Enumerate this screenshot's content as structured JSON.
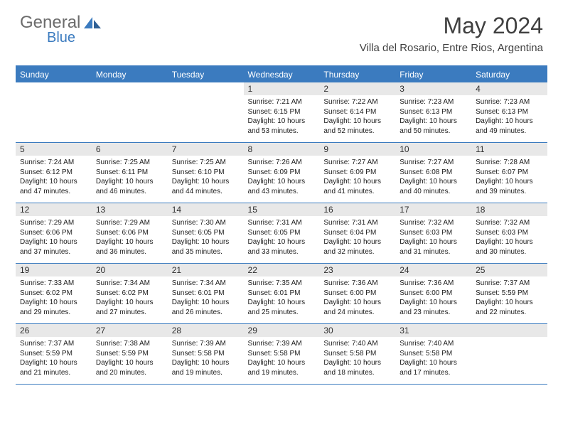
{
  "brand": {
    "part1": "General",
    "part2": "Blue"
  },
  "title": "May 2024",
  "location": "Villa del Rosario, Entre Rios, Argentina",
  "colors": {
    "primary": "#3b7bbf",
    "gray_bar": "#e8e8e8",
    "text_dark": "#303030",
    "logo_gray": "#6b6b6b"
  },
  "day_names": [
    "Sunday",
    "Monday",
    "Tuesday",
    "Wednesday",
    "Thursday",
    "Friday",
    "Saturday"
  ],
  "weeks": [
    [
      {
        "blank": true
      },
      {
        "blank": true
      },
      {
        "blank": true
      },
      {
        "n": "1",
        "sr": "7:21 AM",
        "ss": "6:15 PM",
        "dl": "10 hours and 53 minutes."
      },
      {
        "n": "2",
        "sr": "7:22 AM",
        "ss": "6:14 PM",
        "dl": "10 hours and 52 minutes."
      },
      {
        "n": "3",
        "sr": "7:23 AM",
        "ss": "6:13 PM",
        "dl": "10 hours and 50 minutes."
      },
      {
        "n": "4",
        "sr": "7:23 AM",
        "ss": "6:13 PM",
        "dl": "10 hours and 49 minutes."
      }
    ],
    [
      {
        "n": "5",
        "sr": "7:24 AM",
        "ss": "6:12 PM",
        "dl": "10 hours and 47 minutes."
      },
      {
        "n": "6",
        "sr": "7:25 AM",
        "ss": "6:11 PM",
        "dl": "10 hours and 46 minutes."
      },
      {
        "n": "7",
        "sr": "7:25 AM",
        "ss": "6:10 PM",
        "dl": "10 hours and 44 minutes."
      },
      {
        "n": "8",
        "sr": "7:26 AM",
        "ss": "6:09 PM",
        "dl": "10 hours and 43 minutes."
      },
      {
        "n": "9",
        "sr": "7:27 AM",
        "ss": "6:09 PM",
        "dl": "10 hours and 41 minutes."
      },
      {
        "n": "10",
        "sr": "7:27 AM",
        "ss": "6:08 PM",
        "dl": "10 hours and 40 minutes."
      },
      {
        "n": "11",
        "sr": "7:28 AM",
        "ss": "6:07 PM",
        "dl": "10 hours and 39 minutes."
      }
    ],
    [
      {
        "n": "12",
        "sr": "7:29 AM",
        "ss": "6:06 PM",
        "dl": "10 hours and 37 minutes."
      },
      {
        "n": "13",
        "sr": "7:29 AM",
        "ss": "6:06 PM",
        "dl": "10 hours and 36 minutes."
      },
      {
        "n": "14",
        "sr": "7:30 AM",
        "ss": "6:05 PM",
        "dl": "10 hours and 35 minutes."
      },
      {
        "n": "15",
        "sr": "7:31 AM",
        "ss": "6:05 PM",
        "dl": "10 hours and 33 minutes."
      },
      {
        "n": "16",
        "sr": "7:31 AM",
        "ss": "6:04 PM",
        "dl": "10 hours and 32 minutes."
      },
      {
        "n": "17",
        "sr": "7:32 AM",
        "ss": "6:03 PM",
        "dl": "10 hours and 31 minutes."
      },
      {
        "n": "18",
        "sr": "7:32 AM",
        "ss": "6:03 PM",
        "dl": "10 hours and 30 minutes."
      }
    ],
    [
      {
        "n": "19",
        "sr": "7:33 AM",
        "ss": "6:02 PM",
        "dl": "10 hours and 29 minutes."
      },
      {
        "n": "20",
        "sr": "7:34 AM",
        "ss": "6:02 PM",
        "dl": "10 hours and 27 minutes."
      },
      {
        "n": "21",
        "sr": "7:34 AM",
        "ss": "6:01 PM",
        "dl": "10 hours and 26 minutes."
      },
      {
        "n": "22",
        "sr": "7:35 AM",
        "ss": "6:01 PM",
        "dl": "10 hours and 25 minutes."
      },
      {
        "n": "23",
        "sr": "7:36 AM",
        "ss": "6:00 PM",
        "dl": "10 hours and 24 minutes."
      },
      {
        "n": "24",
        "sr": "7:36 AM",
        "ss": "6:00 PM",
        "dl": "10 hours and 23 minutes."
      },
      {
        "n": "25",
        "sr": "7:37 AM",
        "ss": "5:59 PM",
        "dl": "10 hours and 22 minutes."
      }
    ],
    [
      {
        "n": "26",
        "sr": "7:37 AM",
        "ss": "5:59 PM",
        "dl": "10 hours and 21 minutes."
      },
      {
        "n": "27",
        "sr": "7:38 AM",
        "ss": "5:59 PM",
        "dl": "10 hours and 20 minutes."
      },
      {
        "n": "28",
        "sr": "7:39 AM",
        "ss": "5:58 PM",
        "dl": "10 hours and 19 minutes."
      },
      {
        "n": "29",
        "sr": "7:39 AM",
        "ss": "5:58 PM",
        "dl": "10 hours and 19 minutes."
      },
      {
        "n": "30",
        "sr": "7:40 AM",
        "ss": "5:58 PM",
        "dl": "10 hours and 18 minutes."
      },
      {
        "n": "31",
        "sr": "7:40 AM",
        "ss": "5:58 PM",
        "dl": "10 hours and 17 minutes."
      },
      {
        "blank": true
      }
    ]
  ],
  "labels": {
    "sunrise": "Sunrise:",
    "sunset": "Sunset:",
    "daylight": "Daylight:"
  }
}
